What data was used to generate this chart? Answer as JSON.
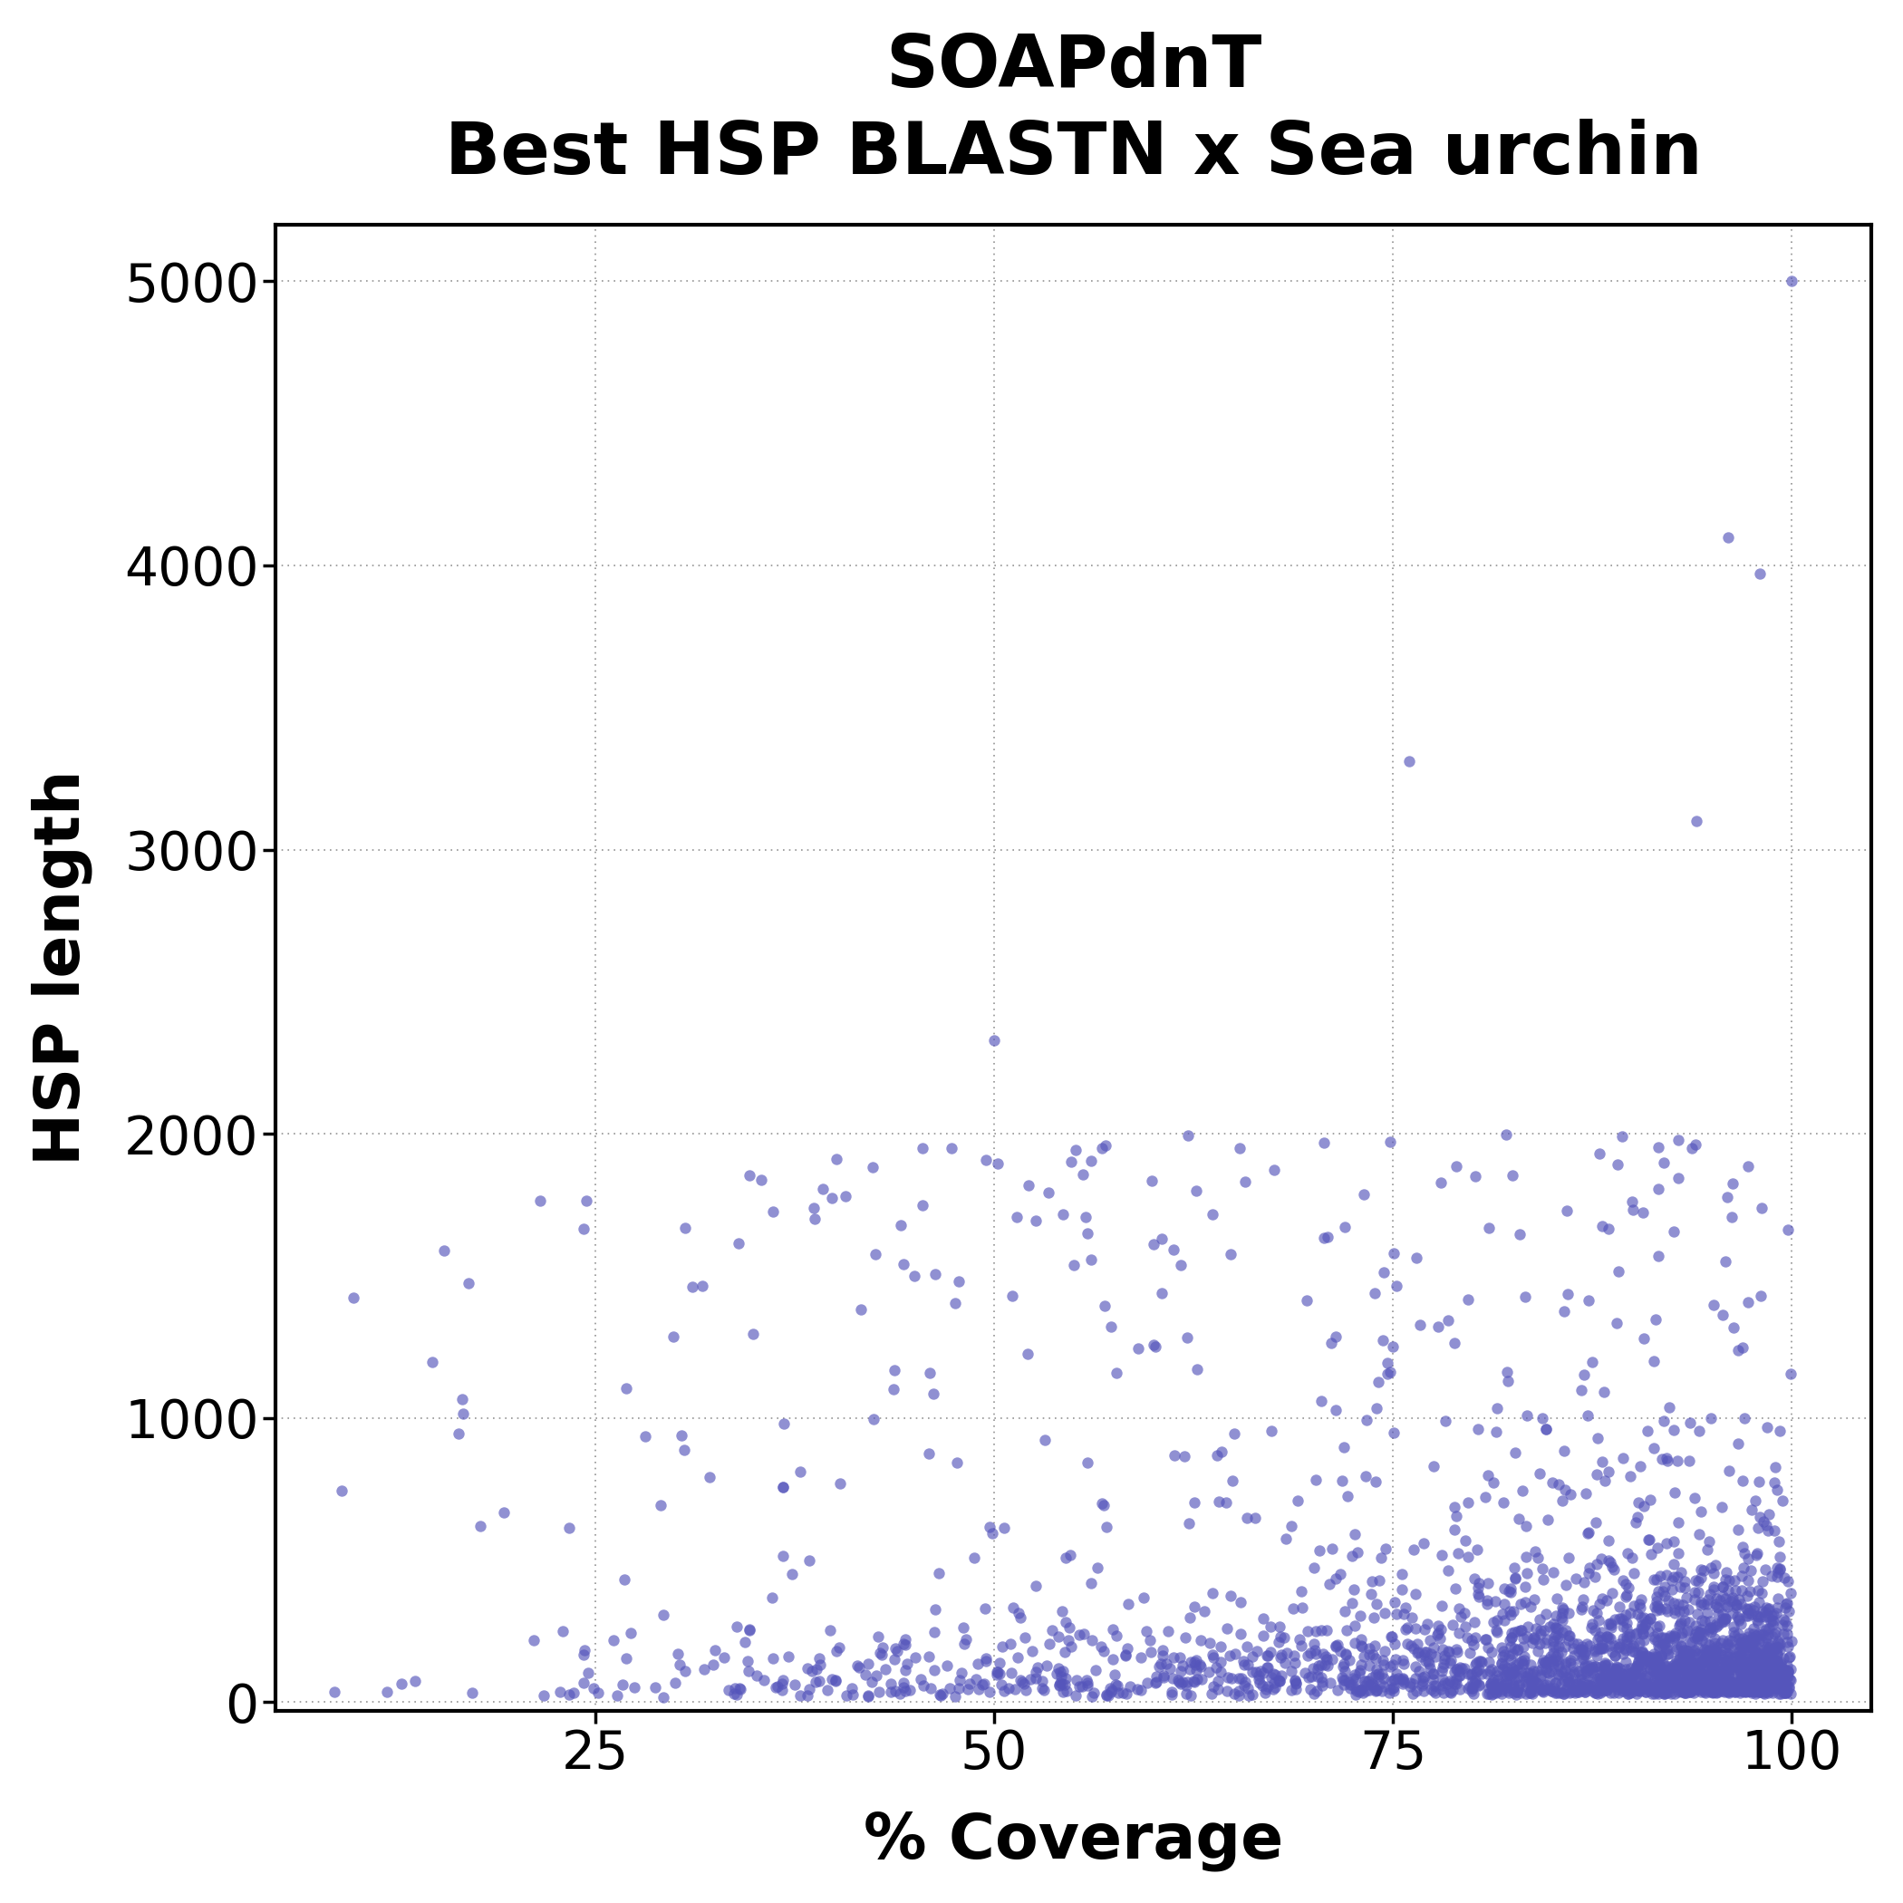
{
  "title_line1": "SOAPdnT",
  "title_line2": "Best HSP BLASTN x Sea urchin",
  "xlabel": "% Coverage",
  "ylabel": "HSP length",
  "xlim": [
    5,
    105
  ],
  "ylim": [
    -30,
    5200
  ],
  "xticks": [
    25,
    50,
    75,
    100
  ],
  "yticks": [
    0,
    1000,
    2000,
    3000,
    4000,
    5000
  ],
  "point_color": "#5555bb",
  "point_alpha": 0.65,
  "point_size": 80,
  "contour_color": "#001030",
  "contour_linewidth": 2.2,
  "background_color": "#ffffff",
  "title_fontsize": 58,
  "axis_label_fontsize": 50,
  "tick_fontsize": 42,
  "seed": 42,
  "n_contour_levels": 22
}
